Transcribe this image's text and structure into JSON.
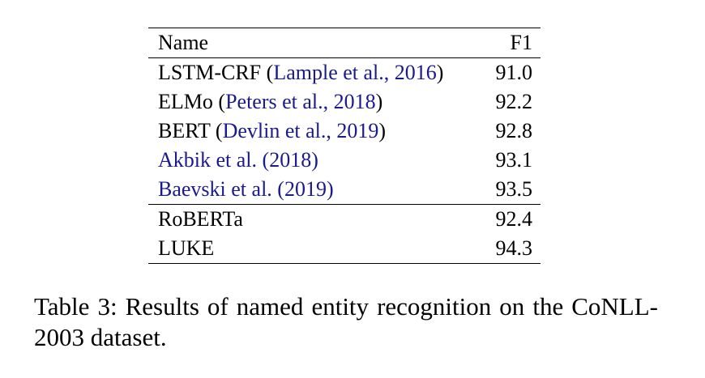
{
  "table": {
    "headers": {
      "name": "Name",
      "f1": "F1"
    },
    "rows": [
      {
        "model": "LSTM-CRF",
        "open": " (",
        "cite": "Lample et al., 2016",
        "close": ")",
        "f1": "91.0"
      },
      {
        "model": "ELMo",
        "open": " (",
        "cite": "Peters et al., 2018",
        "close": ")",
        "f1": "92.2"
      },
      {
        "model": "BERT",
        "open": " (",
        "cite": "Devlin et al., 2019",
        "close": ")",
        "f1": "92.8"
      },
      {
        "model": "",
        "open": "",
        "cite": "Akbik et al.",
        "close": " (2018)",
        "f1": "93.1"
      },
      {
        "model": "",
        "open": "",
        "cite": "Baevski et al.",
        "close": " (2019)",
        "f1": "93.5"
      },
      {
        "model": "RoBERTa",
        "open": "",
        "cite": "",
        "close": "",
        "f1": "92.4"
      },
      {
        "model": "LUKE",
        "open": "",
        "cite": "",
        "close": "",
        "f1": "94.3"
      }
    ]
  },
  "caption": "Table 3:  Results of named entity recognition on the CoNLL-2003 dataset."
}
